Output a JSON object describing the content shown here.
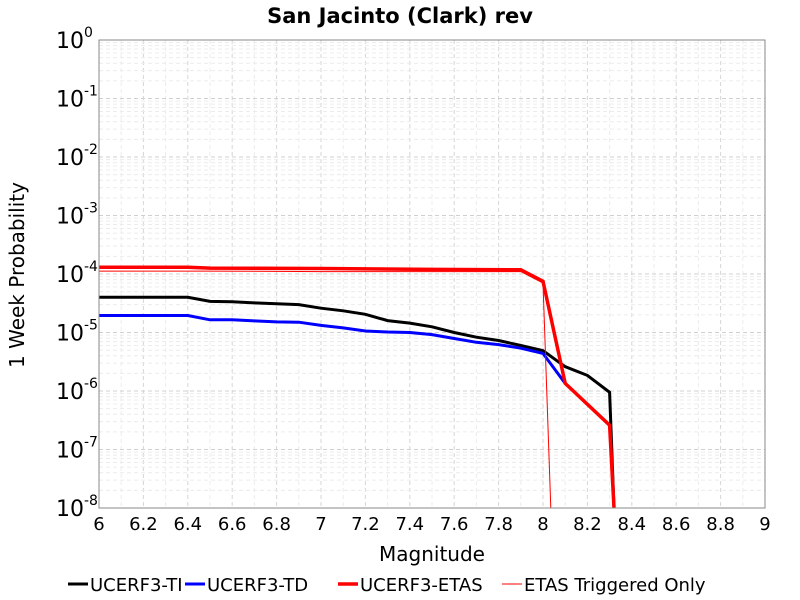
{
  "chart_data": {
    "type": "line",
    "title": "San Jacinto (Clark) rev",
    "xlabel": "Magnitude",
    "ylabel": "1 Week Probability",
    "xlim": [
      6,
      9
    ],
    "ylim": [
      1e-08,
      1
    ],
    "yscale": "log",
    "grid": true,
    "legend_position": "bottom",
    "x_ticks": [
      "6",
      "6.2",
      "6.4",
      "6.6",
      "6.8",
      "7",
      "7.2",
      "7.4",
      "7.6",
      "7.8",
      "8",
      "8.2",
      "8.4",
      "8.6",
      "8.8",
      "9"
    ],
    "y_ticks": [
      {
        "base": "10",
        "exp": "0"
      },
      {
        "base": "10",
        "exp": "-1"
      },
      {
        "base": "10",
        "exp": "-2"
      },
      {
        "base": "10",
        "exp": "-3"
      },
      {
        "base": "10",
        "exp": "-4"
      },
      {
        "base": "10",
        "exp": "-5"
      },
      {
        "base": "10",
        "exp": "-6"
      },
      {
        "base": "10",
        "exp": "-7"
      },
      {
        "base": "10",
        "exp": "-8"
      }
    ],
    "series": [
      {
        "name": "UCERF3-TI",
        "color": "#000000",
        "width": 3,
        "x": [
          6.0,
          6.1,
          6.2,
          6.3,
          6.4,
          6.5,
          6.6,
          6.7,
          6.8,
          6.9,
          7.0,
          7.1,
          7.2,
          7.3,
          7.4,
          7.5,
          7.6,
          7.7,
          7.8,
          7.9,
          8.0,
          8.1,
          8.2,
          8.3,
          8.32
        ],
        "y": [
          4e-05,
          4e-05,
          4e-05,
          4e-05,
          4e-05,
          3.4e-05,
          3.35e-05,
          3.2e-05,
          3.1e-05,
          3e-05,
          2.6e-05,
          2.35e-05,
          2.05e-05,
          1.6e-05,
          1.45e-05,
          1.25e-05,
          1e-05,
          8.3e-06,
          7.3e-06,
          6e-06,
          4.9e-06,
          2.6e-06,
          1.85e-06,
          9.5e-07,
          1e-08
        ]
      },
      {
        "name": "UCERF3-TD",
        "color": "#0000ff",
        "width": 3,
        "x": [
          6.0,
          6.1,
          6.2,
          6.3,
          6.4,
          6.5,
          6.6,
          6.7,
          6.8,
          6.9,
          7.0,
          7.1,
          7.2,
          7.3,
          7.4,
          7.5,
          7.6,
          7.7,
          7.8,
          7.9,
          8.0,
          8.1
        ],
        "y": [
          1.95e-05,
          1.95e-05,
          1.95e-05,
          1.95e-05,
          1.95e-05,
          1.65e-05,
          1.65e-05,
          1.58e-05,
          1.52e-05,
          1.5e-05,
          1.32e-05,
          1.2e-05,
          1.06e-05,
          1.02e-05,
          1e-05,
          9.2e-06,
          7.9e-06,
          6.8e-06,
          6.2e-06,
          5.4e-06,
          4.4e-06,
          1.35e-06
        ]
      },
      {
        "name": "UCERF3-ETAS",
        "color": "#ff0000",
        "width": 3.5,
        "x": [
          6.0,
          6.4,
          6.5,
          7.0,
          7.5,
          7.9,
          8.0,
          8.1,
          8.3,
          8.32
        ],
        "y": [
          0.00013,
          0.00013,
          0.000126,
          0.000124,
          0.00012,
          0.000118,
          7.5e-05,
          1.35e-06,
          2.6e-07,
          1e-08
        ]
      },
      {
        "name": "ETAS Triggered Only",
        "color": "#ff0000",
        "width": 1,
        "x": [
          6.0,
          6.5,
          7.0,
          7.5,
          7.9,
          8.0,
          8.035
        ],
        "y": [
          0.000112,
          0.000112,
          0.00011,
          0.00011,
          0.00011,
          7e-05,
          1e-08
        ]
      }
    ]
  }
}
